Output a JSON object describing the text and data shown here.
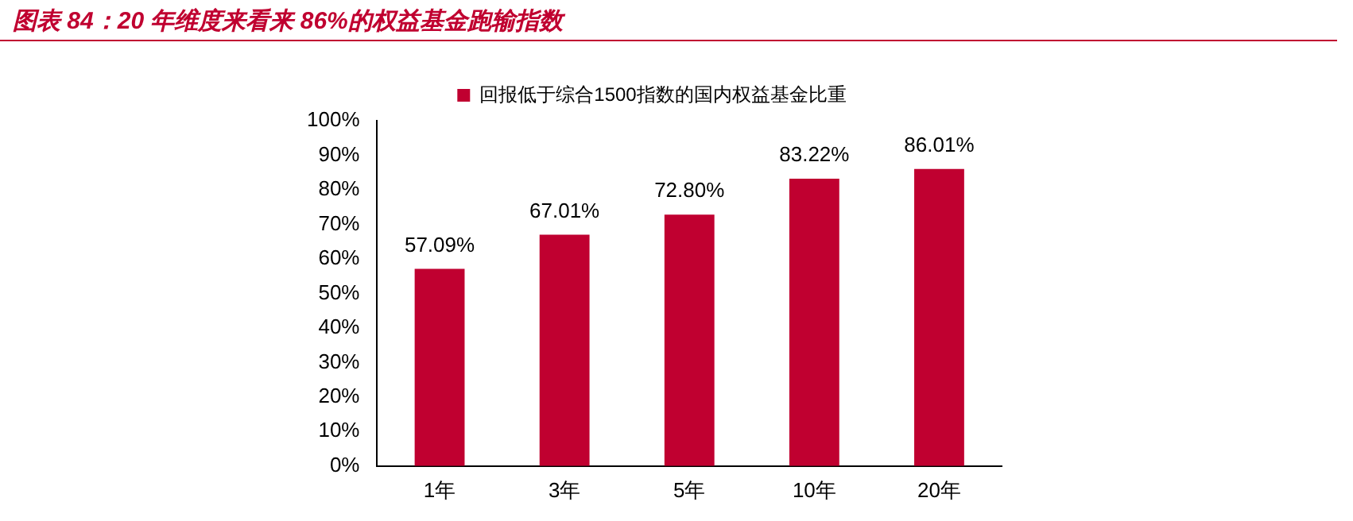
{
  "chart_data": {
    "type": "bar",
    "title": "图表 84：20 年维度来看来 86%的权益基金跑输指数",
    "categories": [
      "1年",
      "3年",
      "5年",
      "10年",
      "20年"
    ],
    "series": [
      {
        "name": "回报低于综合1500指数的国内权益基金比重",
        "color": "#c00030",
        "values": [
          57.09,
          67.01,
          72.8,
          83.22,
          86.01
        ],
        "value_labels": [
          "57.09%",
          "67.01%",
          "72.80%",
          "83.22%",
          "86.01%"
        ]
      }
    ],
    "ylim": [
      0,
      100
    ],
    "yticks": [
      {
        "value": 0,
        "label": "0%"
      },
      {
        "value": 10,
        "label": "10%"
      },
      {
        "value": 20,
        "label": "20%"
      },
      {
        "value": 30,
        "label": "30%"
      },
      {
        "value": 40,
        "label": "40%"
      },
      {
        "value": 50,
        "label": "50%"
      },
      {
        "value": 60,
        "label": "60%"
      },
      {
        "value": 70,
        "label": "70%"
      },
      {
        "value": 80,
        "label": "80%"
      },
      {
        "value": 90,
        "label": "90%"
      },
      {
        "value": 100,
        "label": "100%"
      }
    ],
    "grid": false,
    "legend": "top"
  }
}
